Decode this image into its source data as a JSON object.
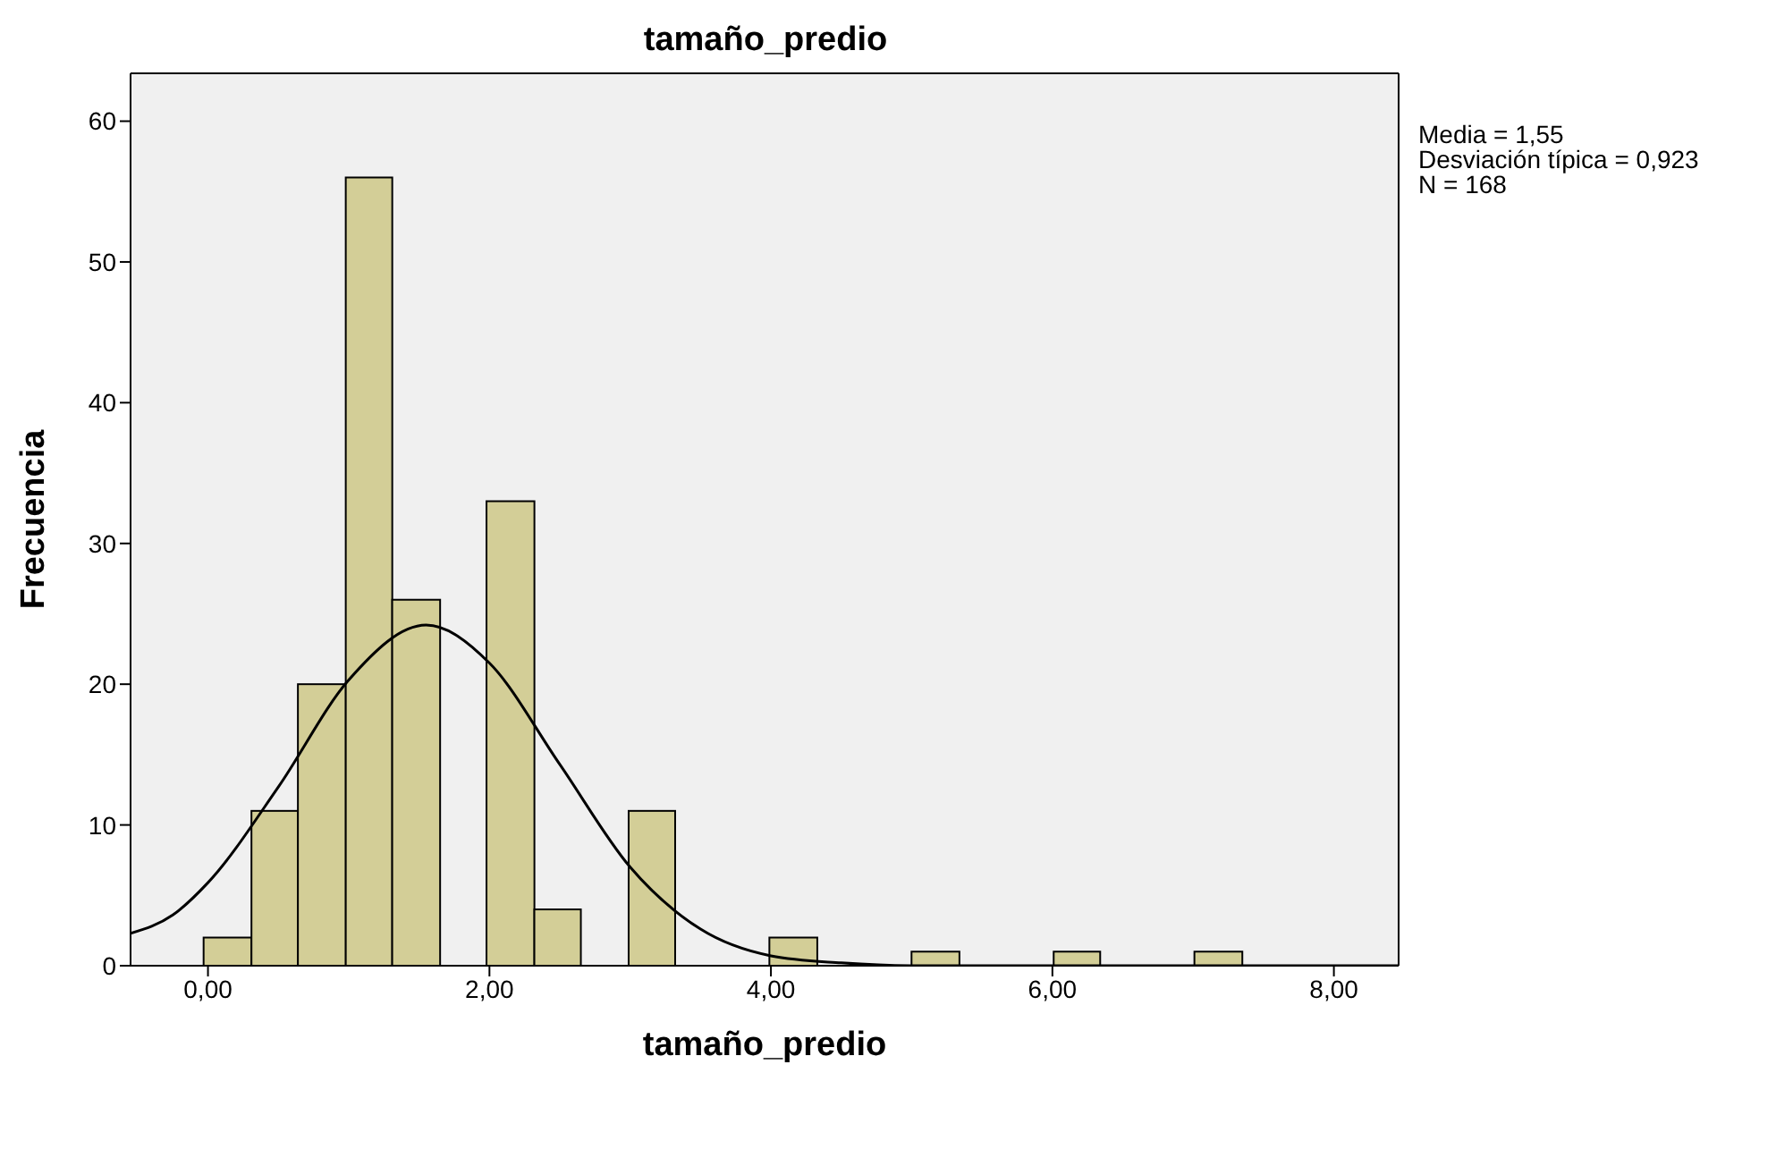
{
  "chart_data": {
    "type": "histogram",
    "title": "tamaño_predio",
    "xlabel": "tamaño_predio",
    "ylabel": "Frecuencia",
    "bins": [
      -0.03,
      0.31,
      0.64,
      0.98,
      1.31,
      1.65,
      1.98,
      2.32,
      2.65,
      2.99,
      3.32,
      3.99,
      4.33,
      5.0,
      5.34,
      6.01,
      6.34,
      7.01,
      7.35
    ],
    "values": [
      2,
      11,
      20,
      56,
      26,
      0,
      33,
      4,
      0,
      11,
      0,
      2,
      0,
      1,
      0,
      1,
      0,
      1
    ],
    "color": "#d3ce97",
    "series": [
      {
        "type": "line",
        "color": "#000000",
        "x": [
          -0.55,
          -0.25,
          0,
          0.5,
          1,
          1.55,
          2,
          2.5,
          3,
          3.5,
          4,
          4.5,
          5,
          6,
          7,
          8.46
        ],
        "values": [
          2.3,
          3.6,
          5.9,
          12.7,
          20.3,
          24.2,
          21.5,
          14.3,
          7,
          2.6,
          0.7,
          0.2,
          0,
          0,
          0,
          0
        ]
      }
    ],
    "xlim": [
      -0.55,
      8.46
    ],
    "xticks": [
      {
        "value": 0,
        "label": "0,00"
      },
      {
        "value": 2,
        "label": "2,00"
      },
      {
        "value": 4,
        "label": "4,00"
      },
      {
        "value": 6,
        "label": "6,00"
      },
      {
        "value": 8,
        "label": "8,00"
      }
    ],
    "ylim": [
      0,
      63.4
    ],
    "yticks": [
      0,
      10,
      20,
      30,
      40,
      50,
      60
    ],
    "grid": false,
    "legend": false,
    "marker": "none",
    "annotations": [
      "Media = 1,55",
      "Desviación típica = 0,923",
      "N = 168"
    ]
  }
}
